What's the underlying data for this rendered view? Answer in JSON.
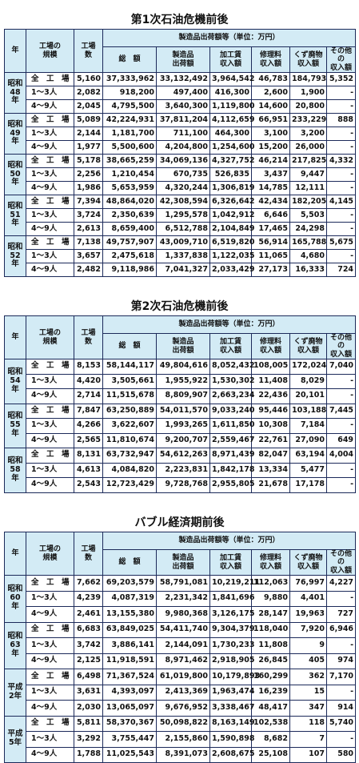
{
  "sections": [
    {
      "title": "第1次石油危機前後",
      "header": {
        "year": "年",
        "scale": "工場の\n規模",
        "count": "工場\n数",
        "group": "製造品出荷額等（単位：万円）",
        "cols": [
          "総　額",
          "製造品\n出荷額",
          "加工賃\n収入額",
          "修理料\n収入額",
          "くず廃物\n収入額",
          "その他の\n収入額"
        ]
      },
      "groups": [
        {
          "year": "昭和\n48年",
          "rows": [
            [
              "全　工　場",
              "5,160",
              "37,333,962",
              "33,132,492",
              "3,964,542",
              "46,783",
              "184,793",
              "5,352"
            ],
            [
              "1～3人",
              "2,082",
              "918,200",
              "497,400",
              "416,300",
              "2,600",
              "1,900",
              "-"
            ],
            [
              "4～9人",
              "2,045",
              "4,795,500",
              "3,640,300",
              "1,119,800",
              "14,600",
              "20,800",
              "-"
            ]
          ]
        },
        {
          "year": "昭和\n49年",
          "rows": [
            [
              "全　工　場",
              "5,089",
              "42,224,931",
              "37,811,204",
              "4,112,659",
              "66,951",
              "233,229",
              "888"
            ],
            [
              "1～3人",
              "2,144",
              "1,181,700",
              "711,100",
              "464,300",
              "3,100",
              "3,200",
              "-"
            ],
            [
              "4～9人",
              "1,977",
              "5,500,600",
              "4,204,800",
              "1,254,600",
              "15,200",
              "26,000",
              "-"
            ]
          ]
        },
        {
          "year": "昭和\n50年",
          "rows": [
            [
              "全　工　場",
              "5,178",
              "38,665,259",
              "34,069,136",
              "4,327,752",
              "46,214",
              "217,825",
              "4,332"
            ],
            [
              "1～3人",
              "2,256",
              "1,210,454",
              "670,735",
              "526,835",
              "3,437",
              "9,447",
              "-"
            ],
            [
              "4～9人",
              "1,986",
              "5,653,959",
              "4,320,244",
              "1,306,819",
              "14,785",
              "12,111",
              "-"
            ]
          ]
        },
        {
          "year": "昭和\n51年",
          "rows": [
            [
              "全　工　場",
              "7,394",
              "48,864,020",
              "42,308,594",
              "6,326,642",
              "42,434",
              "182,205",
              "4,145"
            ],
            [
              "1～3人",
              "3,724",
              "2,350,639",
              "1,295,578",
              "1,042,912",
              "6,646",
              "5,503",
              "-"
            ],
            [
              "4～9人",
              "2,613",
              "8,659,400",
              "6,512,788",
              "2,104,849",
              "17,465",
              "24,298",
              "-"
            ]
          ]
        },
        {
          "year": "昭和\n52年",
          "rows": [
            [
              "全　工　場",
              "7,138",
              "49,757,907",
              "43,009,710",
              "6,519,820",
              "56,914",
              "165,788",
              "5,675"
            ],
            [
              "1～3人",
              "3,657",
              "2,475,618",
              "1,337,838",
              "1,122,035",
              "11,065",
              "4,680",
              "-"
            ],
            [
              "4～9人",
              "2,482",
              "9,118,986",
              "7,041,327",
              "2,033,429",
              "27,173",
              "16,333",
              "724"
            ]
          ]
        }
      ]
    },
    {
      "title": "第2次石油危機前後",
      "header": {
        "year": "年",
        "scale": "工場の\n規模",
        "count": "工場\n数",
        "group": "製造品出荷額等（単位：万円）",
        "cols": [
          "総　額",
          "製造品\n出荷額",
          "加工賃\n収入額",
          "修理料\n収入額",
          "くず廃物\n収入額",
          "その他の\n収入額"
        ]
      },
      "groups": [
        {
          "year": "昭和\n54年",
          "rows": [
            [
              "全　工　場",
              "8,153",
              "58,144,117",
              "49,804,616",
              "8,052,432",
              "108,005",
              "172,024",
              "7,040"
            ],
            [
              "1～3人",
              "4,420",
              "3,505,661",
              "1,955,922",
              "1,530,302",
              "11,408",
              "8,029",
              "-"
            ],
            [
              "4～9人",
              "2,714",
              "11,515,678",
              "8,809,907",
              "2,663,234",
              "22,436",
              "20,101",
              "-"
            ]
          ]
        },
        {
          "year": "昭和\n55年",
          "rows": [
            [
              "全　工　場",
              "7,847",
              "63,250,889",
              "54,011,570",
              "9,033,240",
              "95,446",
              "103,188",
              "7,445"
            ],
            [
              "1～3人",
              "4,266",
              "3,622,607",
              "1,993,265",
              "1,611,850",
              "10,308",
              "7,184",
              "-"
            ],
            [
              "4～9人",
              "2,565",
              "11,810,674",
              "9,200,707",
              "2,559,467",
              "22,761",
              "27,090",
              "649"
            ]
          ]
        },
        {
          "year": "昭和\n58年",
          "rows": [
            [
              "全　工　場",
              "8,131",
              "63,732,947",
              "54,612,263",
              "8,971,439",
              "82,047",
              "63,194",
              "4,004"
            ],
            [
              "1～3人",
              "4,613",
              "4,084,820",
              "2,223,831",
              "1,842,178",
              "13,334",
              "5,477",
              "-"
            ],
            [
              "4～9人",
              "2,543",
              "12,723,429",
              "9,728,768",
              "2,955,805",
              "21,678",
              "17,178",
              "-"
            ]
          ]
        }
      ]
    },
    {
      "title": "バブル経済期前後",
      "header": {
        "year": "年",
        "scale": "工場の\n規模",
        "count": "工場\n数",
        "group": "製造品出荷額等（単位：万円）",
        "cols": [
          "総　額",
          "製造品\n出荷額",
          "加工賃\n収入額",
          "修理料\n収入額",
          "くず廃物\n収入額",
          "その他の\n収入額"
        ]
      },
      "groups": [
        {
          "year": "昭和\n60年",
          "rows": [
            [
              "全　工　場",
              "7,662",
              "69,203,579",
              "58,791,081",
              "10,219,211",
              "112,063",
              "76,997",
              "4,227"
            ],
            [
              "1～3人",
              "4,239",
              "4,087,319",
              "2,231,342",
              "1,841,696",
              "9,880",
              "4,401",
              "-"
            ],
            [
              "4～9人",
              "2,461",
              "13,155,380",
              "9,980,368",
              "3,126,175",
              "28,147",
              "19,963",
              "727"
            ]
          ]
        },
        {
          "year": "昭和\n63年",
          "rows": [
            [
              "全　工　場",
              "6,683",
              "63,849,025",
              "54,411,740",
              "9,304,379",
              "118,040",
              "7,920",
              "6,946"
            ],
            [
              "1～3人",
              "3,742",
              "3,886,141",
              "2,144,091",
              "1,730,233",
              "11,808",
              "9",
              "-"
            ],
            [
              "4～9人",
              "2,125",
              "11,918,591",
              "8,971,462",
              "2,918,905",
              "26,845",
              "405",
              "974"
            ]
          ]
        },
        {
          "year": "平成\n2年",
          "rows": [
            [
              "全　工　場",
              "6,498",
              "71,367,524",
              "61,019,800",
              "10,179,893",
              "160,299",
              "362",
              "7,170"
            ],
            [
              "1～3人",
              "3,631",
              "4,393,097",
              "2,413,369",
              "1,963,474",
              "16,239",
              "15",
              "-"
            ],
            [
              "4～9人",
              "2,030",
              "13,065,097",
              "9,676,952",
              "3,338,467",
              "48,417",
              "347",
              "914"
            ]
          ]
        },
        {
          "year": "平成\n5年",
          "rows": [
            [
              "全　工　場",
              "5,811",
              "58,370,367",
              "50,098,822",
              "8,163,149",
              "102,538",
              "118",
              "5,740"
            ],
            [
              "1～3人",
              "3,292",
              "3,755,447",
              "2,155,860",
              "1,590,898",
              "8,682",
              "7",
              "-"
            ],
            [
              "4～9人",
              "1,788",
              "11,025,543",
              "8,391,073",
              "2,608,675",
              "25,108",
              "107",
              "580"
            ]
          ]
        }
      ]
    }
  ]
}
